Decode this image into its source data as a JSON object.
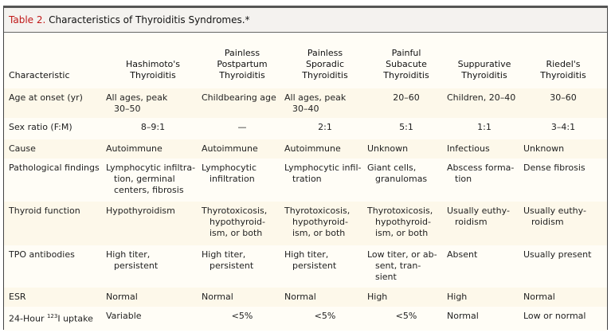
{
  "title": {
    "label": "Table 2.",
    "text": " Characteristics of Thyroiditis Syndromes.*"
  },
  "headers": [
    [
      "Characteristic"
    ],
    [
      "Hashimoto's",
      "Thyroiditis"
    ],
    [
      "Painless",
      "Postpartum",
      "Thyroiditis"
    ],
    [
      "Painless",
      "Sporadic",
      "Thyroiditis"
    ],
    [
      "Painful",
      "Subacute",
      "Thyroiditis"
    ],
    [
      "Suppurative",
      "Thyroiditis"
    ],
    [
      "Riedel's",
      "Thyroiditis"
    ]
  ],
  "rows": [
    {
      "label": "Age at onset (yr)",
      "cells": [
        [
          "All ages, peak",
          "30–50"
        ],
        [
          "Childbearing age"
        ],
        [
          "All ages, peak",
          "30–40"
        ],
        [
          "20–60"
        ],
        [
          "Children, 20–40"
        ],
        [
          "30–60"
        ]
      ]
    },
    {
      "label": "Sex ratio (F:M)",
      "cells": [
        [
          "8–9:1"
        ],
        [
          "—"
        ],
        [
          "2:1"
        ],
        [
          "5:1"
        ],
        [
          "1:1"
        ],
        [
          "3–4:1"
        ]
      ]
    },
    {
      "label": "Cause",
      "cells": [
        [
          "Autoimmune"
        ],
        [
          "Autoimmune"
        ],
        [
          "Autoimmune"
        ],
        [
          "Unknown"
        ],
        [
          "Infectious"
        ],
        [
          "Unknown"
        ]
      ]
    },
    {
      "label": "Pathological findings",
      "cells": [
        [
          "Lymphocytic infiltra-",
          "tion, germinal",
          "centers, fibrosis"
        ],
        [
          "Lymphocytic",
          "infiltration"
        ],
        [
          "Lymphocytic infil-",
          "tration"
        ],
        [
          "Giant cells,",
          "granulomas"
        ],
        [
          "Abscess forma-",
          "tion"
        ],
        [
          "Dense fibrosis"
        ]
      ]
    },
    {
      "label": "Thyroid function",
      "cells": [
        [
          "Hypothyroidism"
        ],
        [
          "Thyrotoxicosis,",
          "hypothyroid-",
          "ism, or both"
        ],
        [
          "Thyrotoxicosis,",
          "hypothyroid-",
          "ism, or both"
        ],
        [
          "Thyrotoxicosis,",
          "hypothyroid-",
          "ism, or both"
        ],
        [
          "Usually euthy-",
          "roidism"
        ],
        [
          "Usually euthy-",
          "roidism"
        ]
      ]
    },
    {
      "label": "TPO antibodies",
      "cells": [
        [
          "High titer,",
          "persistent"
        ],
        [
          "High titer,",
          "persistent"
        ],
        [
          "High titer,",
          "persistent"
        ],
        [
          "Low titer, or ab-",
          "sent, tran-",
          "sient"
        ],
        [
          "Absent"
        ],
        [
          "Usually present"
        ]
      ]
    },
    {
      "label": "ESR",
      "cells": [
        [
          "Normal"
        ],
        [
          "Normal"
        ],
        [
          "Normal"
        ],
        [
          "High"
        ],
        [
          "High"
        ],
        [
          "Normal"
        ]
      ]
    },
    {
      "label_pre": "24-Hour ",
      "label_sup": "123",
      "label_post": "I uptake",
      "cells": [
        [
          "Variable"
        ],
        [
          "<5%"
        ],
        [
          "<5%"
        ],
        [
          "<5%"
        ],
        [
          "Normal"
        ],
        [
          "Low or normal"
        ]
      ]
    }
  ]
}
